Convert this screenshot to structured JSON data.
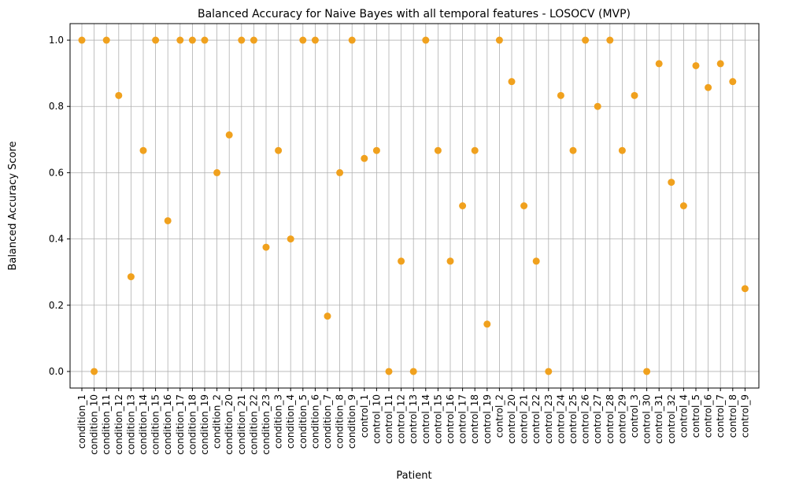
{
  "chart_data": {
    "type": "scatter",
    "title": "Balanced Accuracy for Naive Bayes with all temporal features - LOSOCV (MVP)",
    "xlabel": "Patient",
    "ylabel": "Balanced Accuracy Score",
    "ylim": [
      -0.05,
      1.05
    ],
    "yticks": [
      "0.0",
      "0.2",
      "0.4",
      "0.6",
      "0.8",
      "1.0"
    ],
    "grid": true,
    "colors": {
      "marker": "#f0a11e",
      "grid": "#b0b0b0",
      "axis": "#000000"
    },
    "categories": [
      "condition_1",
      "condition_10",
      "condition_11",
      "condition_12",
      "condition_13",
      "condition_14",
      "condition_15",
      "condition_16",
      "condition_17",
      "condition_18",
      "condition_19",
      "condition_2",
      "condition_20",
      "condition_21",
      "condition_22",
      "condition_23",
      "condition_3",
      "condition_4",
      "condition_5",
      "condition_6",
      "condition_7",
      "condition_8",
      "condition_9",
      "control_1",
      "control_10",
      "control_11",
      "control_12",
      "control_13",
      "control_14",
      "control_15",
      "control_16",
      "control_17",
      "control_18",
      "control_19",
      "control_2",
      "control_20",
      "control_21",
      "control_22",
      "control_23",
      "control_24",
      "control_25",
      "control_26",
      "control_27",
      "control_28",
      "control_29",
      "control_3",
      "control_30",
      "control_31",
      "control_32",
      "control_4",
      "control_5",
      "control_6",
      "control_7",
      "control_8",
      "control_9"
    ],
    "values": [
      1.0,
      0.0,
      1.0,
      0.833,
      0.286,
      0.667,
      1.0,
      0.455,
      1.0,
      1.0,
      1.0,
      0.6,
      0.714,
      1.0,
      1.0,
      0.375,
      0.667,
      0.4,
      1.0,
      1.0,
      0.167,
      0.6,
      1.0,
      0.643,
      0.667,
      0.0,
      0.333,
      0.0,
      1.0,
      0.667,
      0.333,
      0.5,
      0.667,
      0.143,
      1.0,
      0.875,
      0.5,
      0.333,
      0.0,
      0.833,
      0.667,
      1.0,
      0.8,
      1.0,
      0.667,
      0.833,
      0.0,
      0.929,
      0.571,
      0.5,
      0.923,
      0.857,
      0.929,
      0.875,
      0.25
    ]
  }
}
